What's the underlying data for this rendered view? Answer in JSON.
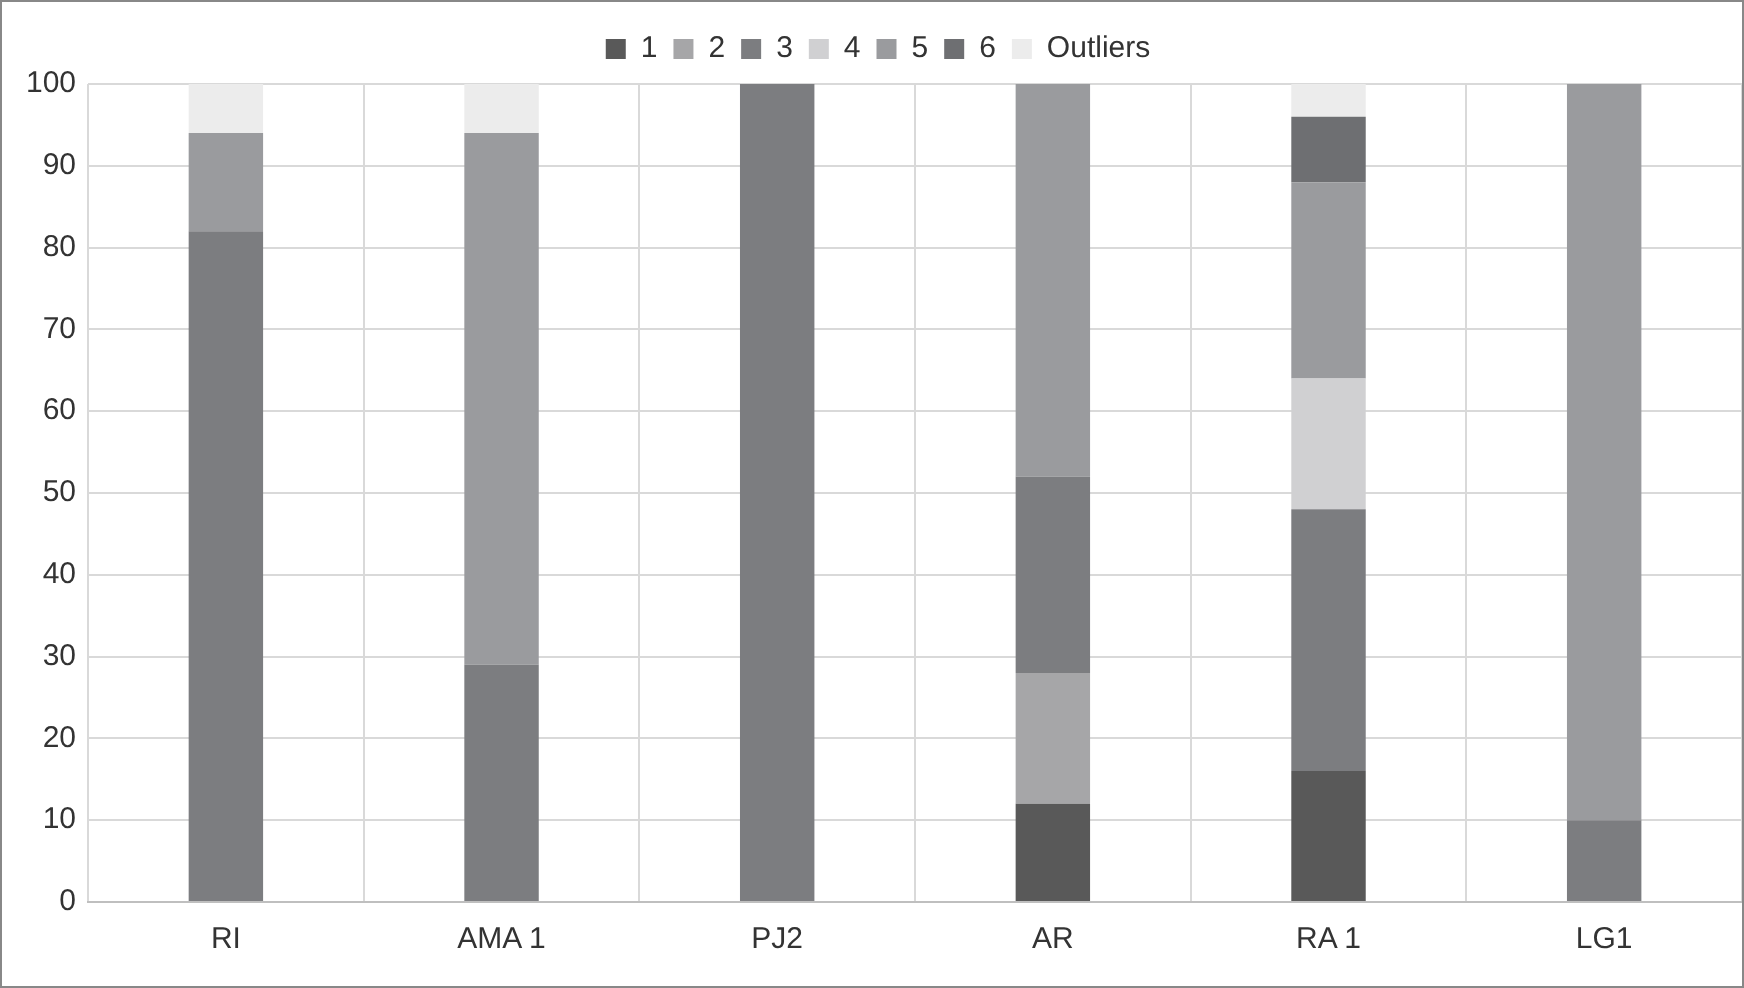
{
  "chart_data": {
    "type": "bar",
    "stacked": true,
    "categories": [
      "RI",
      "AMA 1",
      "PJ2",
      "AR",
      "RA 1",
      "LG1"
    ],
    "series": [
      {
        "name": "1",
        "color": "#595959",
        "values": [
          0,
          0,
          0,
          12,
          16,
          0
        ]
      },
      {
        "name": "2",
        "color": "#a6a6a8",
        "values": [
          0,
          0,
          0,
          16,
          0,
          0
        ]
      },
      {
        "name": "3",
        "color": "#7c7d80",
        "values": [
          82,
          29,
          100,
          24,
          32,
          10
        ]
      },
      {
        "name": "4",
        "color": "#d0d0d2",
        "values": [
          0,
          0,
          0,
          0,
          16,
          0
        ]
      },
      {
        "name": "5",
        "color": "#9a9b9e",
        "values": [
          12,
          65,
          0,
          48,
          24,
          90
        ]
      },
      {
        "name": "6",
        "color": "#6e6f72",
        "values": [
          0,
          0,
          0,
          0,
          8,
          0
        ]
      },
      {
        "name": "Outliers",
        "color": "#ececec",
        "values": [
          6,
          6,
          0,
          0,
          4,
          0
        ]
      }
    ],
    "ylim": [
      0,
      100
    ],
    "yticks": [
      0,
      10,
      20,
      30,
      40,
      50,
      60,
      70,
      80,
      90,
      100
    ],
    "grid": true,
    "legend": "top"
  }
}
